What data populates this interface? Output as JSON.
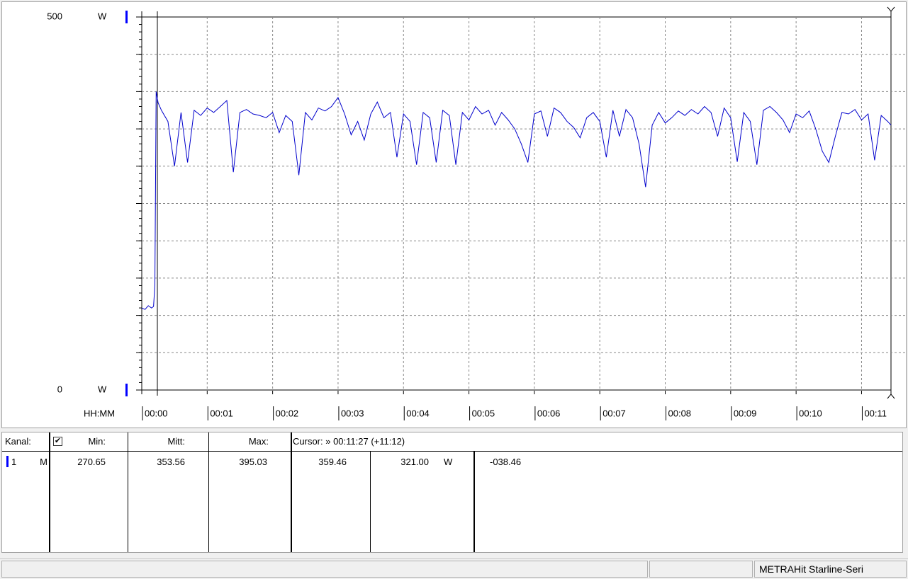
{
  "chart_data": {
    "type": "line",
    "y_unit": "W",
    "x_label": "HH:MM",
    "color": "#0000cc",
    "ylim": [
      0,
      500
    ],
    "yticks": [
      0,
      500
    ],
    "ygrid": [
      50,
      100,
      150,
      200,
      250,
      300,
      350,
      400,
      450
    ],
    "yminor_step": 10,
    "xlim": [
      0,
      11.45
    ],
    "xticks": [
      {
        "value": 0,
        "label": "00:00"
      },
      {
        "value": 1,
        "label": "00:01"
      },
      {
        "value": 2,
        "label": "00:02"
      },
      {
        "value": 3,
        "label": "00:03"
      },
      {
        "value": 4,
        "label": "00:04"
      },
      {
        "value": 5,
        "label": "00:05"
      },
      {
        "value": 6,
        "label": "00:06"
      },
      {
        "value": 7,
        "label": "00:07"
      },
      {
        "value": 8,
        "label": "00:08"
      },
      {
        "value": 9,
        "label": "00:09"
      },
      {
        "value": 10,
        "label": "00:10"
      },
      {
        "value": 11,
        "label": "00:11"
      }
    ],
    "grid": true,
    "x": [
      0,
      0.05,
      0.1,
      0.15,
      0.18,
      0.2,
      0.22,
      0.25,
      0.3,
      0.4,
      0.5,
      0.6,
      0.7,
      0.8,
      0.9,
      1.0,
      1.1,
      1.2,
      1.3,
      1.4,
      1.5,
      1.6,
      1.7,
      1.8,
      1.9,
      2.0,
      2.1,
      2.2,
      2.3,
      2.4,
      2.5,
      2.6,
      2.7,
      2.8,
      2.9,
      3.0,
      3.1,
      3.2,
      3.3,
      3.4,
      3.5,
      3.6,
      3.7,
      3.8,
      3.9,
      4.0,
      4.1,
      4.2,
      4.3,
      4.4,
      4.5,
      4.6,
      4.7,
      4.8,
      4.9,
      5.0,
      5.1,
      5.2,
      5.3,
      5.4,
      5.5,
      5.6,
      5.7,
      5.8,
      5.9,
      6.0,
      6.1,
      6.2,
      6.3,
      6.4,
      6.5,
      6.6,
      6.7,
      6.8,
      6.9,
      7.0,
      7.1,
      7.2,
      7.3,
      7.4,
      7.5,
      7.6,
      7.7,
      7.8,
      7.9,
      8.0,
      8.1,
      8.2,
      8.3,
      8.4,
      8.5,
      8.6,
      8.7,
      8.8,
      8.9,
      9.0,
      9.1,
      9.2,
      9.3,
      9.4,
      9.5,
      9.6,
      9.7,
      9.8,
      9.9,
      10.0,
      10.1,
      10.2,
      10.3,
      10.4,
      10.5,
      10.6,
      10.7,
      10.8,
      10.9,
      11.0,
      11.1,
      11.2,
      11.3,
      11.4,
      11.45
    ],
    "values": [
      110,
      108,
      113,
      110,
      112,
      140,
      400,
      385,
      375,
      360,
      300,
      372,
      305,
      375,
      368,
      378,
      372,
      380,
      388,
      292,
      372,
      376,
      370,
      368,
      365,
      372,
      345,
      368,
      360,
      288,
      372,
      362,
      378,
      374,
      380,
      392,
      370,
      342,
      360,
      335,
      370,
      386,
      365,
      372,
      312,
      370,
      360,
      302,
      372,
      365,
      305,
      375,
      368,
      302,
      372,
      362,
      380,
      370,
      375,
      355,
      372,
      362,
      350,
      330,
      305,
      370,
      374,
      340,
      378,
      372,
      360,
      352,
      338,
      365,
      372,
      360,
      312,
      375,
      340,
      376,
      365,
      330,
      272,
      355,
      372,
      358,
      365,
      374,
      368,
      376,
      370,
      380,
      372,
      340,
      378,
      365,
      306,
      372,
      360,
      302,
      375,
      380,
      372,
      362,
      345,
      370,
      365,
      374,
      350,
      320,
      305,
      340,
      372,
      370,
      376,
      362,
      370,
      308,
      368,
      360,
      355
    ]
  },
  "table": {
    "headers": [
      "Kanal:",
      "Min:",
      "Mitt:",
      "Max:",
      "Cursor: » 00:11:27 (+11:12)"
    ],
    "rows": [
      [
        "1",
        "M",
        "270.65",
        "353.56",
        "395.03",
        "359.46",
        "321.00",
        "W",
        "-038.46"
      ]
    ]
  },
  "status_bar": {
    "device": "METRAHit Starline-Seri"
  }
}
